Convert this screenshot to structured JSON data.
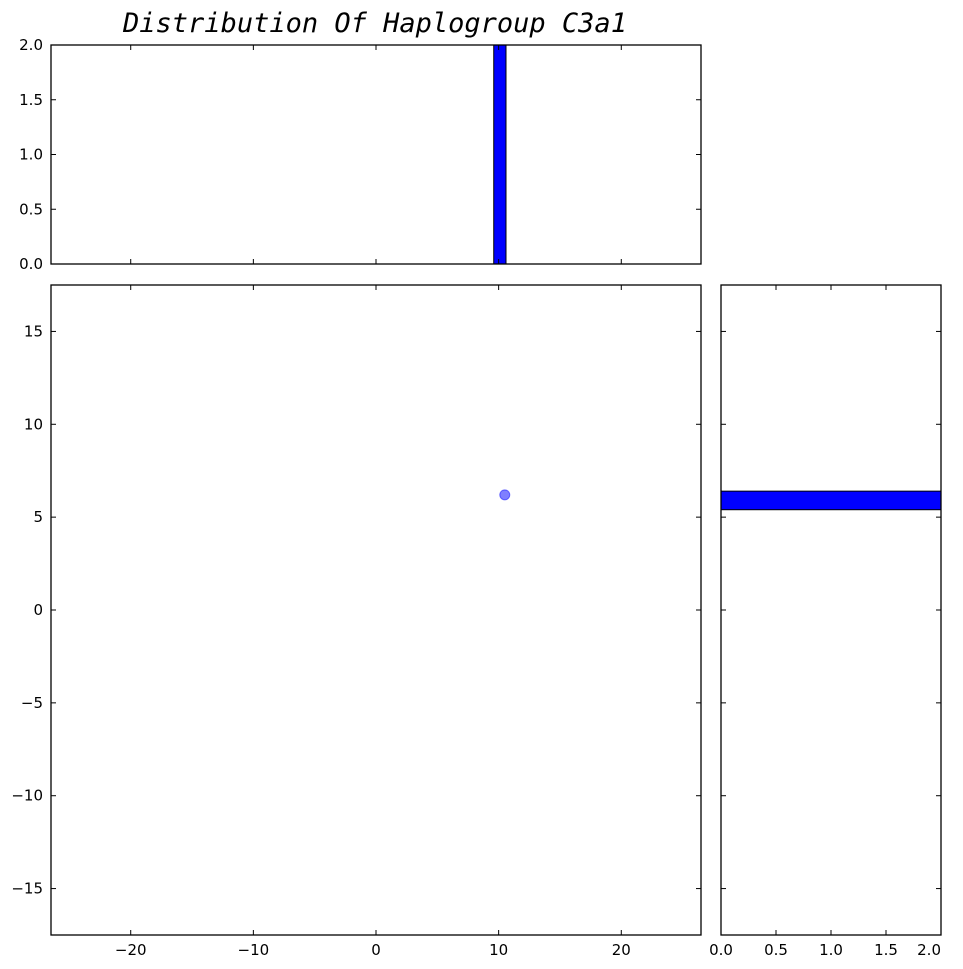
{
  "chart_data": {
    "title": "Distribution Of Haplogroup C3a1",
    "colors": {
      "marks": "#0000ff",
      "axes": "#000000"
    },
    "panels": [
      {
        "id": "top-histogram",
        "type": "bar",
        "orientation": "vertical",
        "xlim": [
          -26.5,
          26.5
        ],
        "ylim": [
          0,
          2
        ],
        "y_ticks": [
          0.0,
          0.5,
          1.0,
          1.5,
          2.0
        ],
        "y_tick_labels": [
          "0.0",
          "0.5",
          "1.0",
          "1.5",
          "2.0"
        ],
        "bins": [
          {
            "x0": 9.6,
            "x1": 10.6,
            "count": 2
          }
        ]
      },
      {
        "id": "main-scatter",
        "type": "scatter",
        "xlim": [
          -26.5,
          26.5
        ],
        "ylim": [
          -17.5,
          17.5
        ],
        "x_ticks": [
          -20,
          -10,
          0,
          10,
          20
        ],
        "x_tick_labels": [
          "−20",
          "−10",
          "0",
          "10",
          "20"
        ],
        "y_ticks": [
          -15,
          -10,
          -5,
          0,
          5,
          10,
          15
        ],
        "y_tick_labels": [
          "−15",
          "−10",
          "−5",
          "0",
          "5",
          "10",
          "15"
        ],
        "points": [
          {
            "x": 10.5,
            "y": 6.2
          }
        ],
        "point_alpha": 0.5
      },
      {
        "id": "right-histogram",
        "type": "bar",
        "orientation": "horizontal",
        "xlim": [
          0,
          2
        ],
        "ylim": [
          -17.5,
          17.5
        ],
        "x_ticks": [
          0.0,
          0.5,
          1.0,
          1.5,
          2.0
        ],
        "x_tick_labels": [
          "0.0",
          "0.5",
          "1.0",
          "1.5",
          "2.0"
        ],
        "bins": [
          {
            "y0": 5.4,
            "y1": 6.4,
            "count": 2
          }
        ]
      }
    ]
  }
}
